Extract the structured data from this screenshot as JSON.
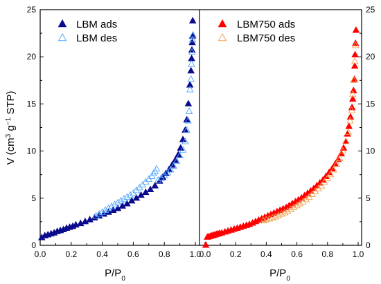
{
  "chart_data": {
    "type": "scatter",
    "ylabel_main": "V (cm",
    "ylabel_sup1": "3",
    "ylabel_mid": " g",
    "ylabel_sup2": "−1",
    "ylabel_end": " STP)",
    "xlabel_main": "P/P",
    "xlabel_sub": "0",
    "xlim": [
      0.0,
      1.0
    ],
    "ylim": [
      0,
      25
    ],
    "x_ticks": [
      "0.0",
      "0.2",
      "0.4",
      "0.6",
      "0.8",
      "1.0"
    ],
    "y_ticks": [
      "0",
      "5",
      "10",
      "15",
      "20",
      "25"
    ],
    "panels": [
      {
        "name": "LBM",
        "series": [
          {
            "name": "LBM ads",
            "color": "#0a0a8c",
            "marker": "filled-triangle",
            "x": [
              0.01,
              0.03,
              0.05,
              0.07,
              0.09,
              0.11,
              0.13,
              0.15,
              0.17,
              0.19,
              0.21,
              0.23,
              0.26,
              0.29,
              0.32,
              0.35,
              0.38,
              0.41,
              0.44,
              0.47,
              0.5,
              0.53,
              0.56,
              0.59,
              0.62,
              0.65,
              0.68,
              0.71,
              0.74,
              0.77,
              0.79,
              0.81,
              0.83,
              0.85,
              0.87,
              0.89,
              0.905,
              0.92,
              0.935,
              0.945,
              0.955,
              0.965,
              0.972,
              0.976,
              0.978,
              0.98,
              0.982,
              0.983
            ],
            "y": [
              0.8,
              1.0,
              1.1,
              1.2,
              1.3,
              1.45,
              1.55,
              1.65,
              1.8,
              1.9,
              2.0,
              2.15,
              2.3,
              2.5,
              2.7,
              2.9,
              3.1,
              3.3,
              3.5,
              3.7,
              3.9,
              4.15,
              4.4,
              4.7,
              5.0,
              5.3,
              5.6,
              5.9,
              6.3,
              6.8,
              7.2,
              7.6,
              8.0,
              8.5,
              9.0,
              9.6,
              10.3,
              11.2,
              12.2,
              13.3,
              15.0,
              17.0,
              18.5,
              19.8,
              20.7,
              21.5,
              22.2,
              23.8
            ]
          },
          {
            "name": "LBM des",
            "color": "#4ba3ff",
            "marker": "open-triangle",
            "x": [
              0.985,
              0.982,
              0.978,
              0.975,
              0.972,
              0.966,
              0.96,
              0.953,
              0.945,
              0.935,
              0.92,
              0.9,
              0.88,
              0.86,
              0.84,
              0.82,
              0.8,
              0.78,
              0.76,
              0.75,
              0.74,
              0.73,
              0.72,
              0.7,
              0.68,
              0.66,
              0.64,
              0.62,
              0.6,
              0.58,
              0.56,
              0.54,
              0.52,
              0.5,
              0.48,
              0.46,
              0.44,
              0.42,
              0.4,
              0.38,
              0.36
            ],
            "y": [
              22.3,
              21.8,
              20.5,
              19.2,
              17.6,
              16.5,
              14.2,
              13.2,
              12.2,
              11.0,
              10.1,
              9.5,
              8.9,
              8.4,
              8.0,
              7.7,
              7.4,
              7.1,
              6.9,
              8.1,
              7.8,
              7.6,
              7.3,
              7.0,
              6.7,
              6.4,
              6.1,
              5.8,
              5.5,
              5.3,
              5.1,
              4.9,
              4.7,
              4.5,
              4.3,
              4.1,
              3.9,
              3.7,
              3.5,
              3.3,
              3.1
            ]
          }
        ]
      },
      {
        "name": "LBM750",
        "series": [
          {
            "name": "LBM750 ads",
            "color": "#ff0000",
            "marker": "filled-triangle",
            "x": [
              0.005,
              0.015,
              0.025,
              0.035,
              0.045,
              0.055,
              0.065,
              0.075,
              0.085,
              0.095,
              0.11,
              0.13,
              0.15,
              0.17,
              0.19,
              0.21,
              0.23,
              0.25,
              0.27,
              0.29,
              0.31,
              0.33,
              0.35,
              0.37,
              0.39,
              0.41,
              0.43,
              0.45,
              0.47,
              0.49,
              0.51,
              0.53,
              0.55,
              0.57,
              0.59,
              0.61,
              0.63,
              0.65,
              0.67,
              0.69,
              0.71,
              0.73,
              0.75,
              0.77,
              0.79,
              0.81,
              0.83,
              0.85,
              0.87,
              0.89,
              0.905,
              0.92,
              0.93,
              0.94,
              0.95,
              0.96,
              0.965,
              0.97,
              0.975,
              0.978,
              0.98,
              0.983,
              0.986
            ],
            "y": [
              0.0,
              0.85,
              0.9,
              0.95,
              1.0,
              1.05,
              1.1,
              1.15,
              1.2,
              1.25,
              1.3,
              1.4,
              1.5,
              1.6,
              1.7,
              1.8,
              1.9,
              2.0,
              2.1,
              2.2,
              2.35,
              2.5,
              2.65,
              2.8,
              2.95,
              3.1,
              3.25,
              3.4,
              3.55,
              3.7,
              3.85,
              4.0,
              4.2,
              4.4,
              4.6,
              4.8,
              5.0,
              5.25,
              5.5,
              5.75,
              6.0,
              6.3,
              6.6,
              6.9,
              7.3,
              7.7,
              8.1,
              8.6,
              9.1,
              9.7,
              10.3,
              11.0,
              11.8,
              12.6,
              13.6,
              14.6,
              15.5,
              16.4,
              17.6,
              19.0,
              20.2,
              21.4,
              22.8
            ]
          },
          {
            "name": "LBM750 des",
            "color": "#f0a04b",
            "marker": "open-triangle",
            "x": [
              0.983,
              0.978,
              0.972,
              0.965,
              0.958,
              0.948,
              0.935,
              0.92,
              0.9,
              0.88,
              0.86,
              0.84,
              0.82,
              0.8,
              0.78,
              0.76,
              0.74,
              0.72,
              0.7,
              0.68,
              0.66,
              0.64,
              0.62,
              0.6,
              0.58,
              0.56,
              0.54,
              0.52,
              0.5,
              0.48,
              0.46,
              0.44,
              0.42,
              0.4,
              0.38
            ],
            "y": [
              21.2,
              19.5,
              17.5,
              16.0,
              14.3,
              13.2,
              12.0,
              11.0,
              10.0,
              9.2,
              8.6,
              8.0,
              7.5,
              7.1,
              6.7,
              6.3,
              6.0,
              5.7,
              5.4,
              5.1,
              4.85,
              4.6,
              4.4,
              4.2,
              4.0,
              3.8,
              3.6,
              3.45,
              3.3,
              3.15,
              3.0,
              2.9,
              2.8,
              2.7,
              2.6
            ]
          }
        ]
      }
    ]
  }
}
